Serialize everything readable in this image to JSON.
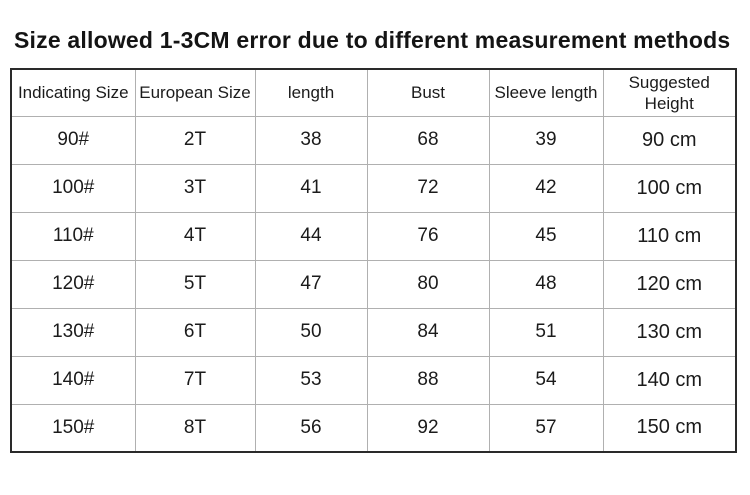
{
  "title": "Size allowed 1-3CM error due to different measurement methods",
  "table": {
    "headers": [
      "Indicating Size",
      "European Size",
      "length",
      "Bust",
      "Sleeve length",
      "Suggested Height"
    ],
    "rows": [
      [
        "90#",
        "2T",
        "38",
        "68",
        "39",
        "90 cm"
      ],
      [
        "100#",
        "3T",
        "41",
        "72",
        "42",
        "100 cm"
      ],
      [
        "110#",
        "4T",
        "44",
        "76",
        "45",
        "110 cm"
      ],
      [
        "120#",
        "5T",
        "47",
        "80",
        "48",
        "120 cm"
      ],
      [
        "130#",
        "6T",
        "50",
        "84",
        "51",
        "130 cm"
      ],
      [
        "140#",
        "7T",
        "53",
        "88",
        "54",
        "140 cm"
      ],
      [
        "150#",
        "8T",
        "56",
        "92",
        "57",
        "150 cm"
      ]
    ]
  },
  "colors": {
    "background": "#ffffff",
    "text": "#1b1b1b",
    "outer_border": "#2a2a2a",
    "inner_border": "#b0b0b0"
  }
}
